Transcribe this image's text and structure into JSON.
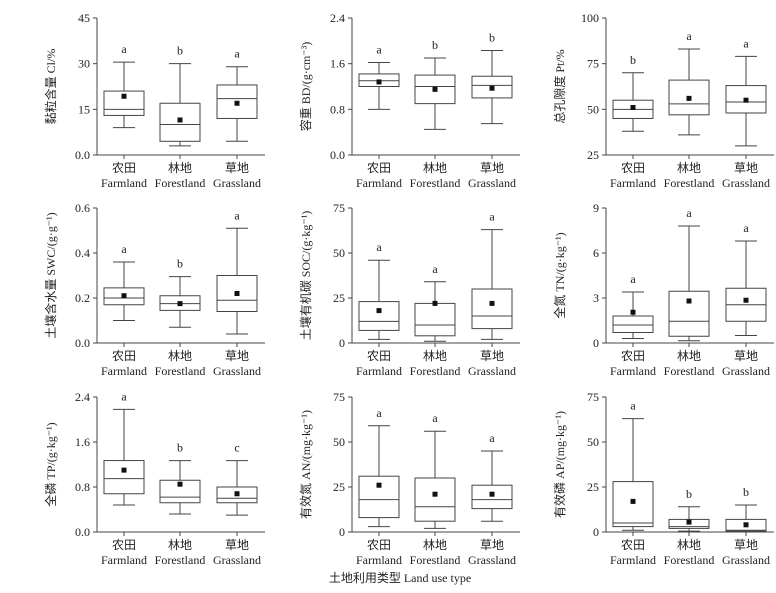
{
  "chart_data": [
    {
      "type": "box",
      "ylabel": "黏粒含量 Cl/%",
      "ylim": [
        0,
        45
      ],
      "ticks": [
        "0.0",
        "15",
        "30",
        "45"
      ],
      "tickvals": [
        0,
        15,
        30,
        45
      ],
      "groups": [
        {
          "min": 9,
          "q1": 13,
          "median": 15,
          "q3": 21,
          "max": 30.5,
          "mean": 19.3,
          "letter": "a"
        },
        {
          "min": 3,
          "q1": 4.5,
          "median": 10,
          "q3": 17,
          "max": 30,
          "mean": 11.5,
          "letter": "b"
        },
        {
          "min": 4.5,
          "q1": 12,
          "median": 18.5,
          "q3": 23,
          "max": 29,
          "mean": 17,
          "letter": "a"
        }
      ]
    },
    {
      "type": "box",
      "ylabel": "容重 BD/(g·cm⁻³)",
      "ylim": [
        0,
        2.4
      ],
      "ticks": [
        "0.0",
        "0.8",
        "1.6",
        "2.4"
      ],
      "tickvals": [
        0,
        0.8,
        1.6,
        2.4
      ],
      "groups": [
        {
          "min": 0.8,
          "q1": 1.2,
          "median": 1.3,
          "q3": 1.42,
          "max": 1.62,
          "mean": 1.28,
          "letter": "a"
        },
        {
          "min": 0.45,
          "q1": 0.9,
          "median": 1.2,
          "q3": 1.4,
          "max": 1.7,
          "mean": 1.15,
          "letter": "b"
        },
        {
          "min": 0.55,
          "q1": 1.0,
          "median": 1.22,
          "q3": 1.38,
          "max": 1.83,
          "mean": 1.17,
          "letter": "b"
        }
      ]
    },
    {
      "type": "box",
      "ylabel": "总孔隙度 Pt/%",
      "ylim": [
        25,
        100
      ],
      "ticks": [
        "25",
        "50",
        "75",
        "100"
      ],
      "tickvals": [
        25,
        50,
        75,
        100
      ],
      "groups": [
        {
          "min": 38,
          "q1": 45,
          "median": 50,
          "q3": 55,
          "max": 70,
          "mean": 51,
          "letter": "b"
        },
        {
          "min": 36,
          "q1": 47,
          "median": 53,
          "q3": 66,
          "max": 83,
          "mean": 56,
          "letter": "a"
        },
        {
          "min": 30,
          "q1": 48,
          "median": 54,
          "q3": 63,
          "max": 79,
          "mean": 55,
          "letter": "a"
        }
      ]
    },
    {
      "type": "box",
      "ylabel": "土壤含水量 SWC/(g·g⁻¹)",
      "ylim": [
        0,
        0.6
      ],
      "ticks": [
        "0.0",
        "0.2",
        "0.4",
        "0.6"
      ],
      "tickvals": [
        0,
        0.2,
        0.4,
        0.6
      ],
      "groups": [
        {
          "min": 0.1,
          "q1": 0.17,
          "median": 0.2,
          "q3": 0.245,
          "max": 0.36,
          "mean": 0.21,
          "letter": "a"
        },
        {
          "min": 0.07,
          "q1": 0.145,
          "median": 0.175,
          "q3": 0.21,
          "max": 0.295,
          "mean": 0.175,
          "letter": "b"
        },
        {
          "min": 0.04,
          "q1": 0.14,
          "median": 0.19,
          "q3": 0.3,
          "max": 0.51,
          "mean": 0.22,
          "letter": "a"
        }
      ]
    },
    {
      "type": "box",
      "ylabel": "土壤有机碳 SOC/(g·kg⁻¹)",
      "ylim": [
        0,
        75
      ],
      "ticks": [
        "0",
        "25",
        "50",
        "75"
      ],
      "tickvals": [
        0,
        25,
        50,
        75
      ],
      "groups": [
        {
          "min": 2,
          "q1": 7,
          "median": 12,
          "q3": 23,
          "max": 46,
          "mean": 18,
          "letter": "a"
        },
        {
          "min": 1,
          "q1": 4,
          "median": 10,
          "q3": 22,
          "max": 34,
          "mean": 22,
          "letter": "a"
        },
        {
          "min": 2,
          "q1": 8,
          "median": 15,
          "q3": 30,
          "max": 63,
          "mean": 22,
          "letter": "a"
        }
      ]
    },
    {
      "type": "box",
      "ylabel": "全氮 TN/(g·kg⁻¹)",
      "ylim": [
        0,
        9
      ],
      "ticks": [
        "0",
        "3",
        "6",
        "9"
      ],
      "tickvals": [
        0,
        3,
        6,
        9
      ],
      "groups": [
        {
          "min": 0.3,
          "q1": 0.7,
          "median": 1.2,
          "q3": 1.8,
          "max": 3.4,
          "mean": 2.05,
          "letter": "a"
        },
        {
          "min": 0.15,
          "q1": 0.45,
          "median": 1.45,
          "q3": 3.45,
          "max": 7.8,
          "mean": 2.8,
          "letter": "a"
        },
        {
          "min": 0.5,
          "q1": 1.45,
          "median": 2.55,
          "q3": 3.65,
          "max": 6.8,
          "mean": 2.85,
          "letter": "a"
        }
      ]
    },
    {
      "type": "box",
      "ylabel": "全磷 TP/(g·kg⁻¹)",
      "ylim": [
        0,
        2.4
      ],
      "ticks": [
        "0.0",
        "0.8",
        "1.6",
        "2.4"
      ],
      "tickvals": [
        0,
        0.8,
        1.6,
        2.4
      ],
      "groups": [
        {
          "min": 0.48,
          "q1": 0.68,
          "median": 0.95,
          "q3": 1.27,
          "max": 2.18,
          "mean": 1.1,
          "letter": "a"
        },
        {
          "min": 0.32,
          "q1": 0.52,
          "median": 0.62,
          "q3": 0.92,
          "max": 1.27,
          "mean": 0.85,
          "letter": "b"
        },
        {
          "min": 0.3,
          "q1": 0.52,
          "median": 0.6,
          "q3": 0.8,
          "max": 1.27,
          "mean": 0.68,
          "letter": "c"
        }
      ]
    },
    {
      "type": "box",
      "ylabel": "有效氮 AN/(mg·kg⁻¹)",
      "ylim": [
        0,
        75
      ],
      "ticks": [
        "0",
        "25",
        "50",
        "75"
      ],
      "tickvals": [
        0,
        25,
        50,
        75
      ],
      "groups": [
        {
          "min": 3,
          "q1": 8,
          "median": 18,
          "q3": 31,
          "max": 59,
          "mean": 26,
          "letter": "a"
        },
        {
          "min": 2,
          "q1": 6,
          "median": 14,
          "q3": 30,
          "max": 56,
          "mean": 21,
          "letter": "a"
        },
        {
          "min": 6,
          "q1": 13,
          "median": 18,
          "q3": 26,
          "max": 45,
          "mean": 21,
          "letter": "a"
        }
      ]
    },
    {
      "type": "box",
      "ylabel": "有效磷 AP/(mg·kg⁻¹)",
      "ylim": [
        0,
        75
      ],
      "ticks": [
        "0",
        "25",
        "50",
        "75"
      ],
      "tickvals": [
        0,
        25,
        50,
        75
      ],
      "groups": [
        {
          "min": 1,
          "q1": 3,
          "median": 5,
          "q3": 28,
          "max": 63,
          "mean": 17,
          "letter": "a"
        },
        {
          "min": 0.5,
          "q1": 2,
          "median": 3,
          "q3": 7,
          "max": 14,
          "mean": 5.5,
          "letter": "b"
        },
        {
          "min": 0,
          "q1": 0.5,
          "median": 1,
          "q3": 7,
          "max": 15,
          "mean": 4,
          "letter": "b"
        }
      ]
    }
  ],
  "categories_cn": [
    "农田",
    "林地",
    "草地"
  ],
  "categories_en": [
    "Farmland",
    "Forestland",
    "Grassland"
  ],
  "xlabel": "土地利用类型  Land use type"
}
